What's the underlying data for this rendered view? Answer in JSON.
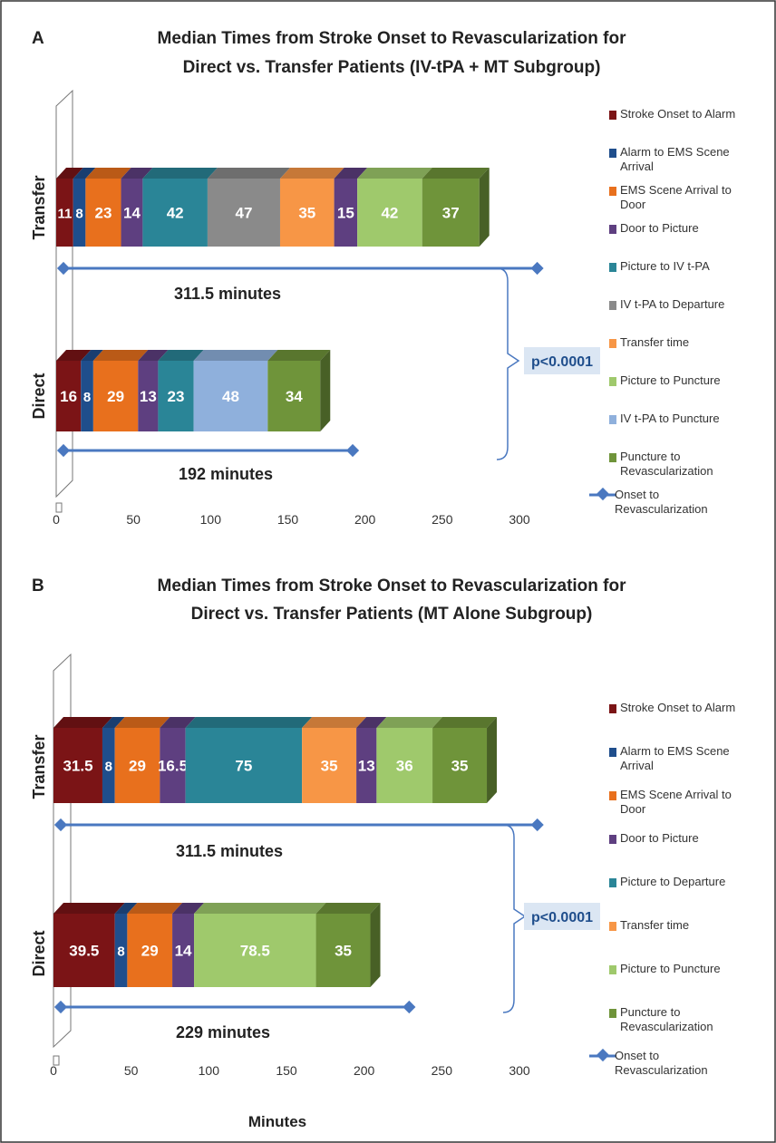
{
  "figure": {
    "xlabel": "Minutes",
    "significance_label": "p<0.0001"
  },
  "chart_data": [
    {
      "panel_label": "A",
      "type": "bar",
      "orientation": "horizontal",
      "stacked": true,
      "title": "Median Times from  Stroke Onset to Revascularization for",
      "subtitle": "Direct  vs. Transfer Patients (IV-tPA + MT Subgroup)",
      "xlim": [
        0,
        300
      ],
      "xticks": [
        0,
        50,
        100,
        150,
        200,
        250,
        300
      ],
      "grid": false,
      "legend_position": "right",
      "categories": [
        "Transfer",
        "Direct"
      ],
      "series": [
        {
          "name": "Stroke Onset to Alarm",
          "color": "#7b1416",
          "values": [
            11,
            16
          ]
        },
        {
          "name": "Alarm to EMS Scene Arrival",
          "color": "#1f4e8c",
          "values": [
            8,
            8
          ]
        },
        {
          "name": "EMS Scene Arrival to Door",
          "color": "#e8701d",
          "values": [
            23,
            29
          ]
        },
        {
          "name": "Door to Picture",
          "color": "#5e3f80",
          "values": [
            14,
            13
          ]
        },
        {
          "name": "Picture to IV t-PA",
          "color": "#2a8597",
          "values": [
            42,
            23
          ]
        },
        {
          "name": "IV t-PA to Departure",
          "color": "#8a8a8a",
          "values": [
            47,
            null
          ]
        },
        {
          "name": "Transfer time",
          "color": "#f79646",
          "values": [
            35,
            null
          ]
        },
        {
          "name": "Door to Picture",
          "color": "#5e3f80",
          "legend": false,
          "values": [
            15,
            null
          ]
        },
        {
          "name": "Picture to Puncture",
          "color": "#9fc96c",
          "values": [
            42,
            null
          ]
        },
        {
          "name": "IV t-PA to Puncture",
          "color": "#8fb0dc",
          "values": [
            null,
            48
          ]
        },
        {
          "name": "Puncture to Revascularization",
          "color": "#6f943a",
          "values": [
            37,
            34
          ]
        }
      ],
      "totals": [
        {
          "category": "Transfer",
          "value": 311.5,
          "label": "311.5 minutes"
        },
        {
          "category": "Direct",
          "value": 192,
          "label": "192 minutes"
        }
      ],
      "total_series_name": "Onset to Revascularization",
      "significance": "p<0.0001"
    },
    {
      "panel_label": "B",
      "type": "bar",
      "orientation": "horizontal",
      "stacked": true,
      "title": "Median Times from  Stroke Onset to Revascularization for",
      "subtitle": "Direct  vs. Transfer Patients (MT Alone Subgroup)",
      "xlim": [
        0,
        300
      ],
      "xticks": [
        0,
        50,
        100,
        150,
        200,
        250,
        300
      ],
      "grid": false,
      "legend_position": "right",
      "categories": [
        "Transfer",
        "Direct"
      ],
      "series": [
        {
          "name": "Stroke Onset to Alarm",
          "color": "#7b1416",
          "values": [
            31.5,
            39.5
          ]
        },
        {
          "name": "Alarm to EMS Scene Arrival",
          "color": "#1f4e8c",
          "values": [
            8,
            8
          ]
        },
        {
          "name": "EMS Scene Arrival to Door",
          "color": "#e8701d",
          "values": [
            29,
            29
          ]
        },
        {
          "name": "Door to Picture",
          "color": "#5e3f80",
          "values": [
            16.5,
            14
          ]
        },
        {
          "name": "Picture to Departure",
          "color": "#2a8597",
          "values": [
            75,
            null
          ]
        },
        {
          "name": "Transfer time",
          "color": "#f79646",
          "values": [
            35,
            null
          ]
        },
        {
          "name": "Door to Picture",
          "color": "#5e3f80",
          "legend": false,
          "values": [
            13,
            null
          ]
        },
        {
          "name": "Picture to Puncture",
          "color": "#9fc96c",
          "values": [
            36,
            78.5
          ]
        },
        {
          "name": "Puncture to Revascularization",
          "color": "#6f943a",
          "values": [
            35,
            35
          ]
        }
      ],
      "totals": [
        {
          "category": "Transfer",
          "value": 311.5,
          "label": "311.5 minutes"
        },
        {
          "category": "Direct",
          "value": 229,
          "label": "229 minutes"
        }
      ],
      "total_series_name": "Onset to Revascularization",
      "significance": "p<0.0001"
    }
  ]
}
